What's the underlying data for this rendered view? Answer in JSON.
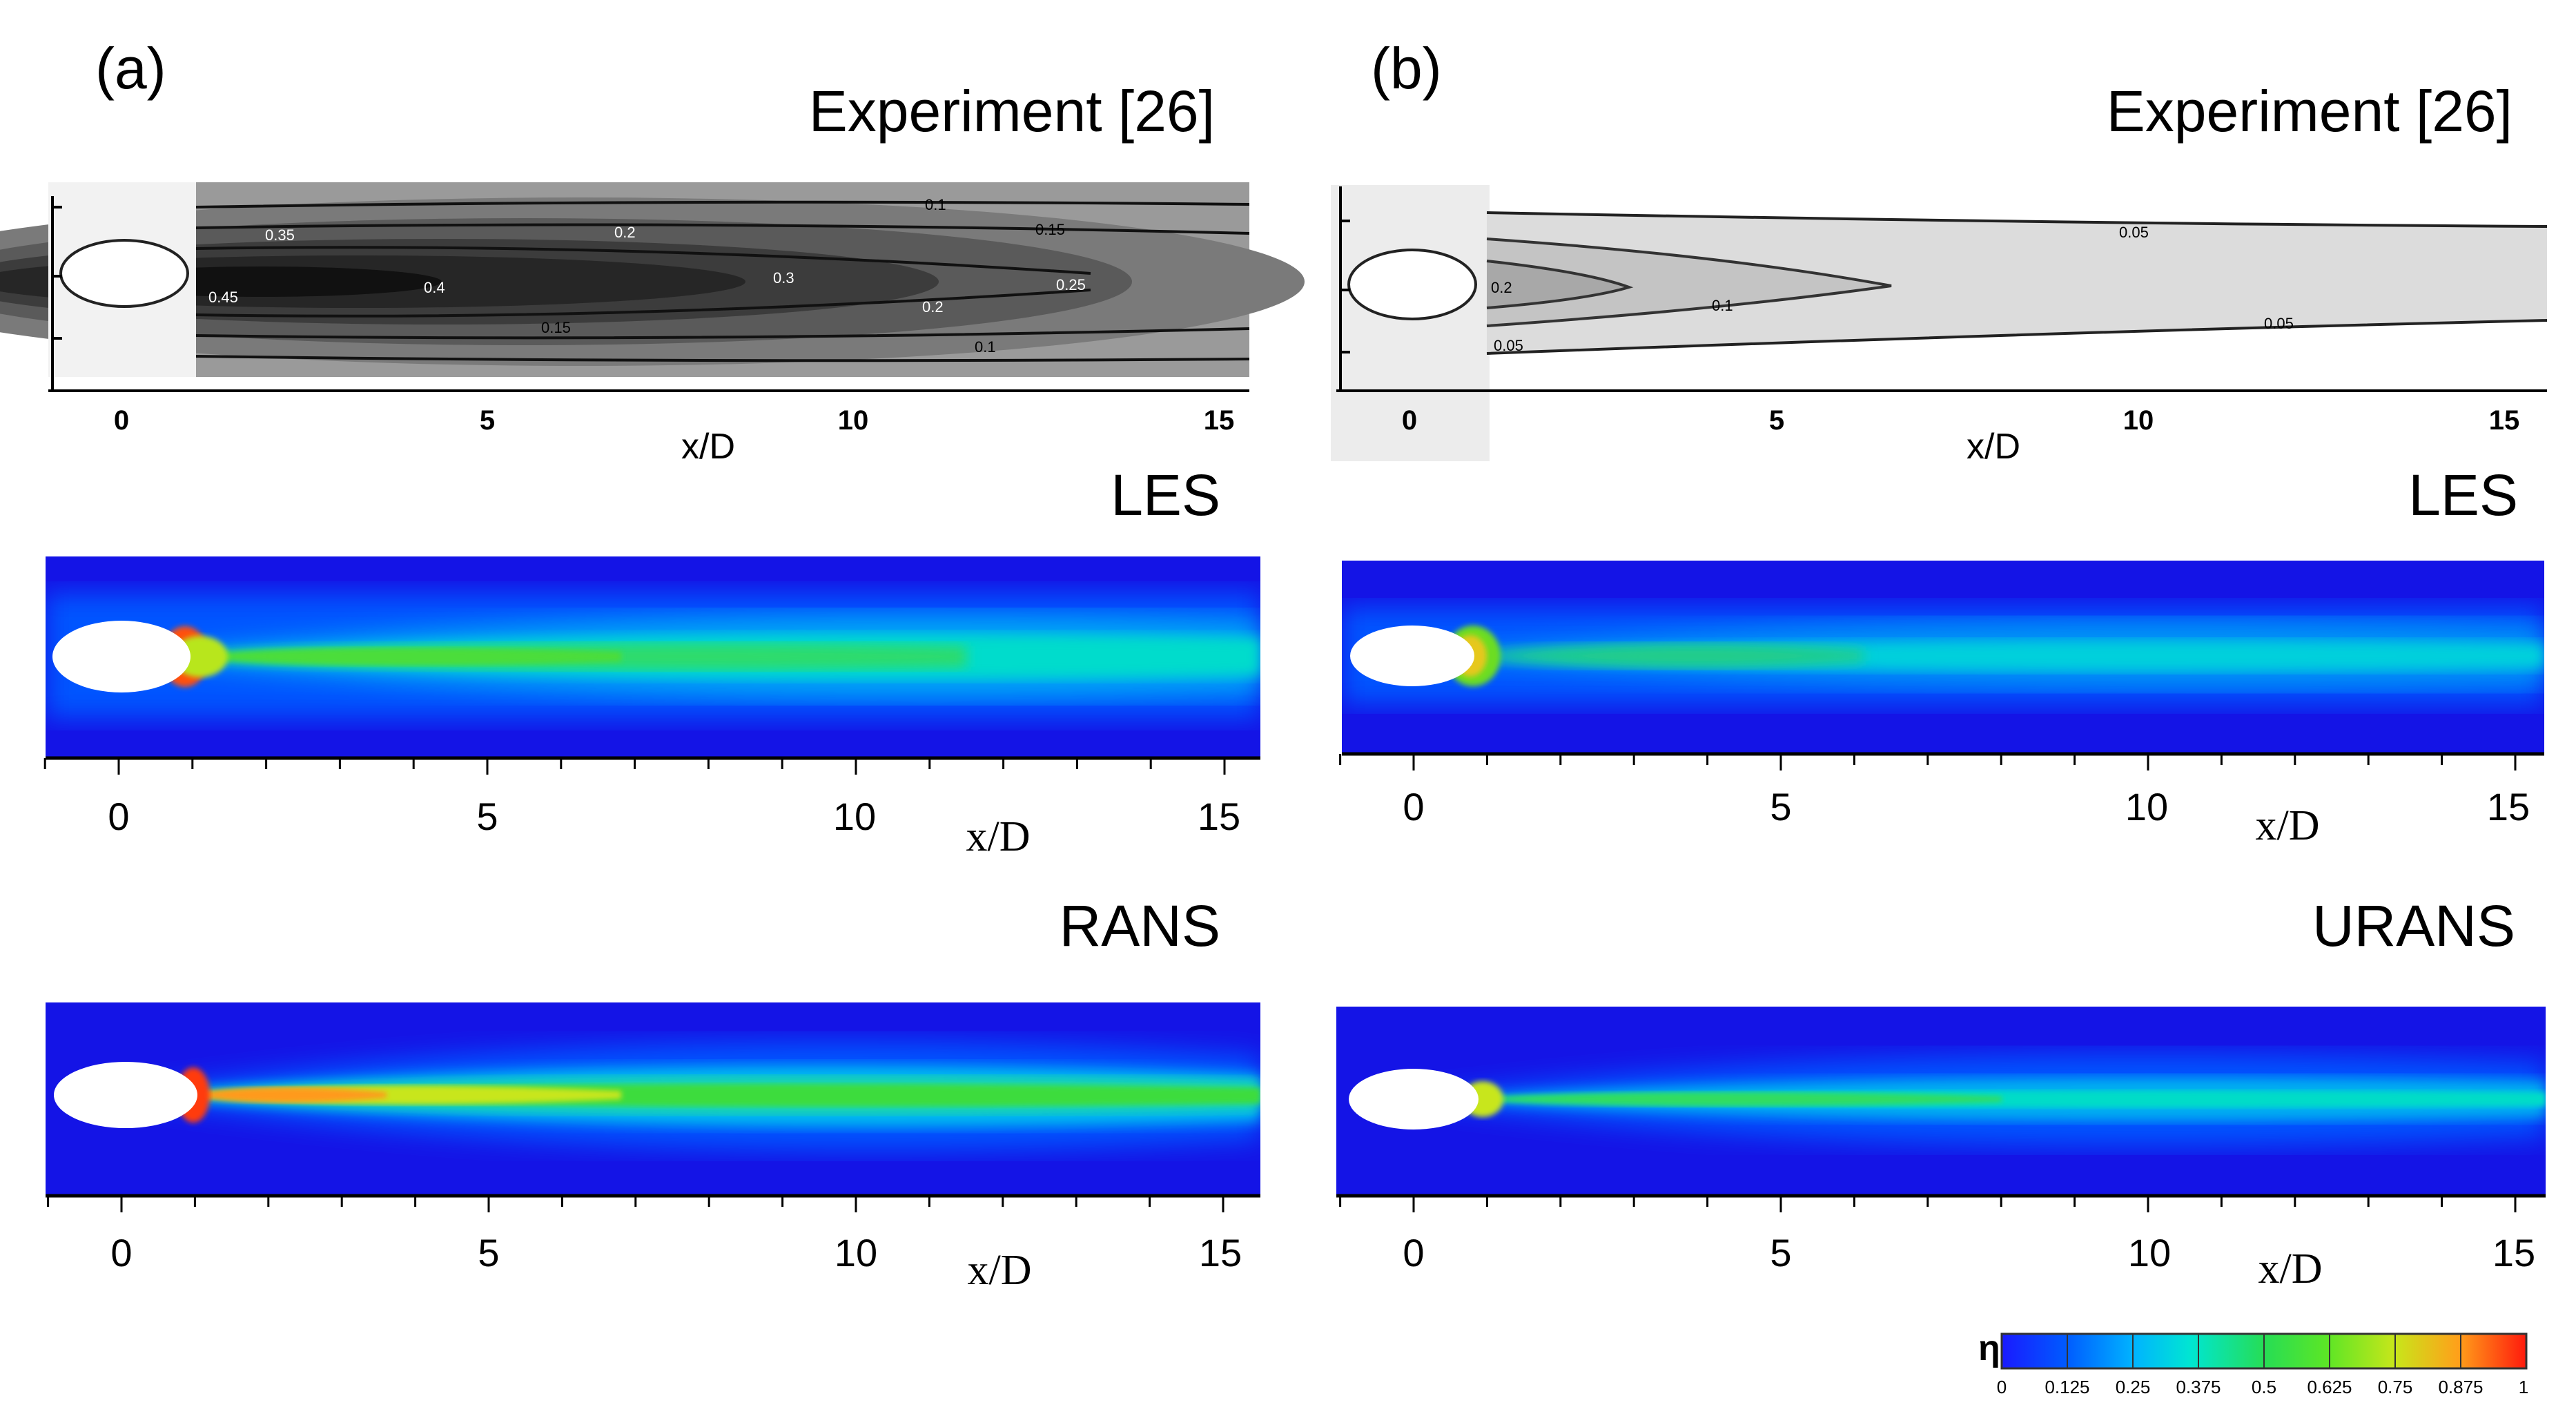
{
  "panels": [
    {
      "letter": "(a)",
      "experiment": {
        "title": "Experiment [26]",
        "xlabel": "x/D",
        "ticks": [
          "0",
          "5",
          "10",
          "15"
        ],
        "contour_labels": [
          "0.1",
          "0.15",
          "0.2",
          "0.25",
          "0.3",
          "0.35",
          "0.4",
          "0.45",
          "0.2",
          "0.15",
          "0.1"
        ]
      },
      "sim1": {
        "title": "LES",
        "xlabel": "x/D",
        "ticks": [
          "0",
          "5",
          "10",
          "15"
        ]
      },
      "sim2": {
        "title": "RANS",
        "xlabel": "x/D",
        "ticks": [
          "0",
          "5",
          "10",
          "15"
        ]
      }
    },
    {
      "letter": "(b)",
      "experiment": {
        "title": "Experiment [26]",
        "xlabel": "x/D",
        "ticks": [
          "0",
          "5",
          "10",
          "15"
        ],
        "contour_labels": [
          "0.05",
          "0.2",
          "0.1",
          "0.05",
          "0.05"
        ]
      },
      "sim1": {
        "title": "LES",
        "xlabel": "x/D",
        "ticks": [
          "0",
          "5",
          "10",
          "15"
        ]
      },
      "sim2": {
        "title": "URANS",
        "xlabel": "x/D",
        "ticks": [
          "0",
          "5",
          "10",
          "15"
        ]
      }
    }
  ],
  "colorbar": {
    "symbol": "η",
    "ticks": [
      "0",
      "0.125",
      "0.25",
      "0.375",
      "0.5",
      "0.625",
      "0.75",
      "0.875",
      "1"
    ],
    "colors": [
      "#1a1aff",
      "#0066ff",
      "#00b3ff",
      "#00e6d2",
      "#2ee88a",
      "#22cc44",
      "#a6e62e",
      "#e6d21a",
      "#ff8c1a",
      "#ff2a0d"
    ]
  }
}
